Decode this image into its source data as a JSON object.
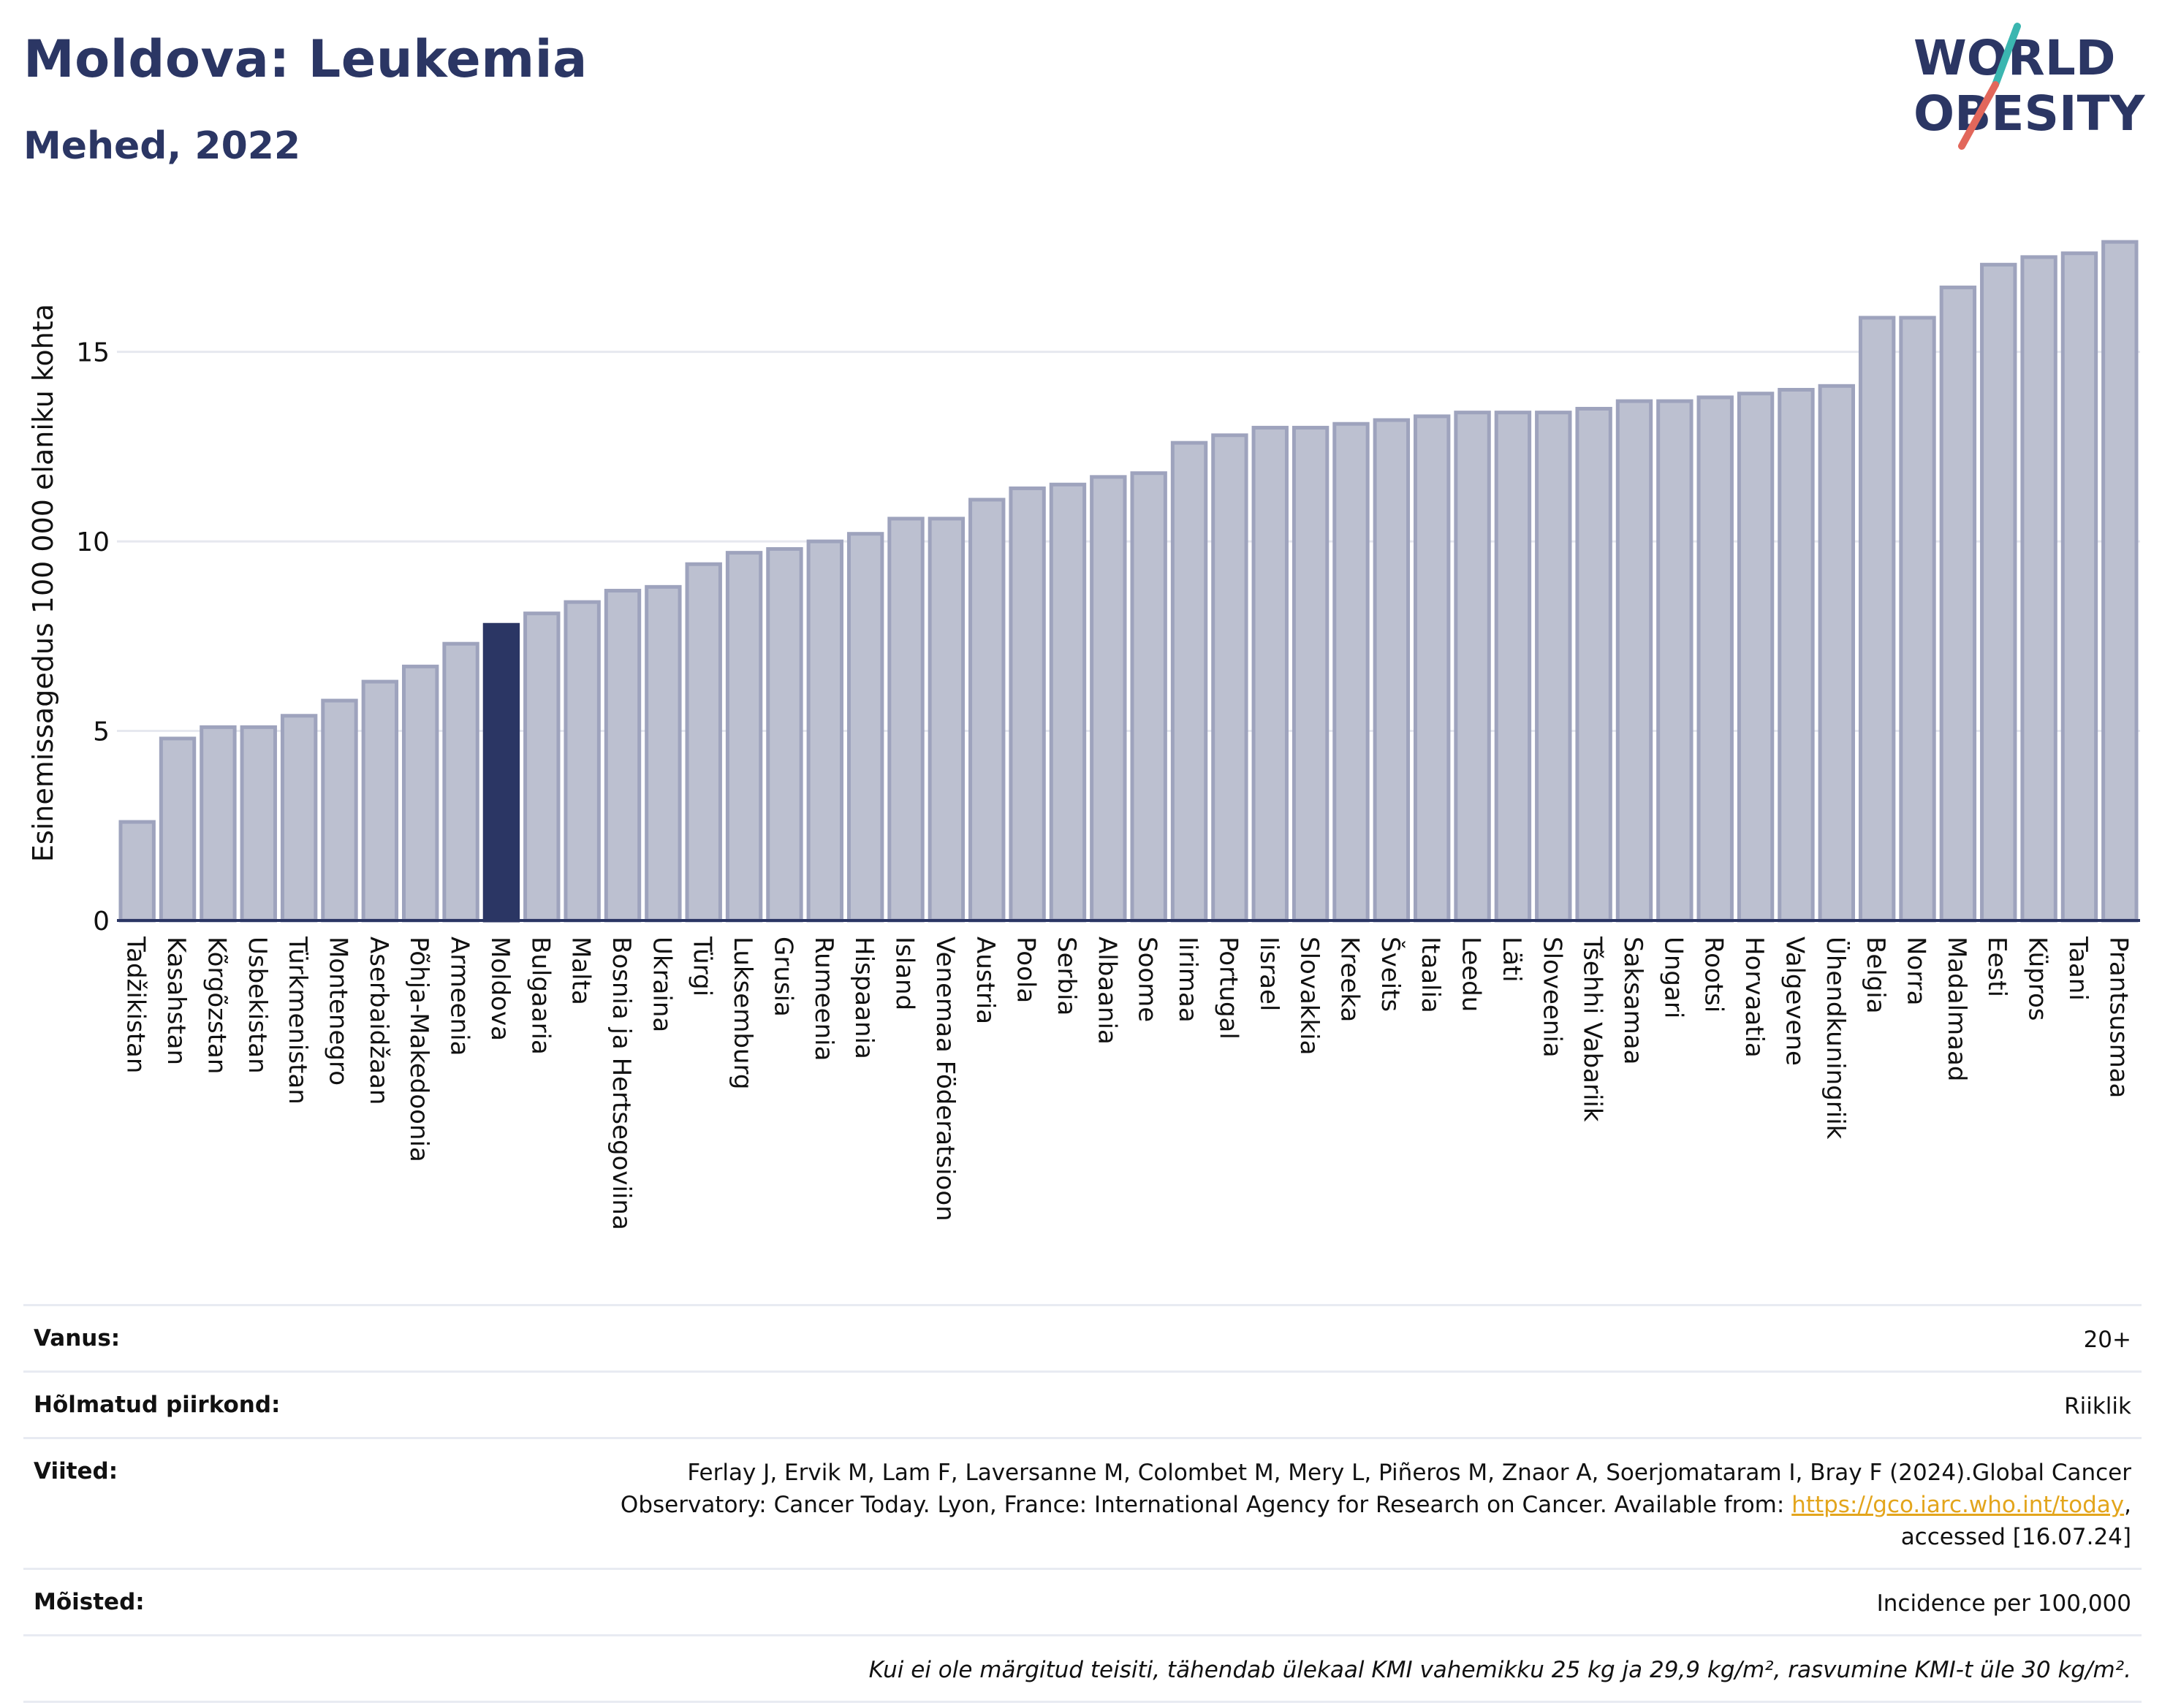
{
  "header": {
    "title": "Moldova: Leukemia",
    "subtitle": "Mehed, 2022"
  },
  "logo": {
    "line1": "WORLD",
    "line2": "OBESITY"
  },
  "chart_data": {
    "type": "bar",
    "ylabel": "Esinemissagedus 100 000 elaniku kohta",
    "ylim": [
      0,
      18.5
    ],
    "yticks": [
      0,
      5,
      10,
      15
    ],
    "grid": true,
    "highlight": "Moldova",
    "colors": {
      "bar": "#bcc0d0",
      "bar_border": "#9ea3bd",
      "highlight": "#2b3664"
    },
    "categories": [
      "Tadžikistan",
      "Kasahstan",
      "Kõrgõzstan",
      "Usbekistan",
      "Türkmenistan",
      "Montenegro",
      "Aserbaidžaan",
      "Põhja-Makedoonia",
      "Armeenia",
      "Moldova",
      "Bulgaaria",
      "Malta",
      "Bosnia ja Hertsegoviina",
      "Ukraina",
      "Türgi",
      "Luksemburg",
      "Grusia",
      "Rumeenia",
      "Hispaania",
      "Island",
      "Venemaa Föderatsioon",
      "Austria",
      "Poola",
      "Serbia",
      "Albaania",
      "Soome",
      "Iirimaa",
      "Portugal",
      "Iisrael",
      "Slovakkia",
      "Kreeka",
      "Šveits",
      "Itaalia",
      "Leedu",
      "Läti",
      "Sloveenia",
      "Tšehhi Vabariik",
      "Saksamaa",
      "Ungari",
      "Rootsi",
      "Horvaatia",
      "Valgevene",
      "Ühendkuningriik",
      "Belgia",
      "Norra",
      "Madalmaad",
      "Eesti",
      "Küpros",
      "Taani",
      "Prantsusmaa"
    ],
    "values": [
      2.6,
      4.8,
      5.1,
      5.1,
      5.4,
      5.8,
      6.3,
      6.7,
      7.3,
      7.8,
      8.1,
      8.4,
      8.7,
      8.8,
      9.4,
      9.7,
      9.8,
      10.0,
      10.2,
      10.6,
      10.6,
      11.1,
      11.4,
      11.5,
      11.7,
      11.8,
      12.6,
      12.8,
      13.0,
      13.0,
      13.1,
      13.2,
      13.3,
      13.4,
      13.4,
      13.4,
      13.5,
      13.7,
      13.7,
      13.8,
      13.9,
      14.0,
      14.1,
      15.9,
      15.9,
      16.7,
      17.3,
      17.5,
      17.6,
      17.9
    ]
  },
  "meta": {
    "age_label": "Vanus:",
    "age_value": "20+",
    "region_label": "Hõlmatud piirkond:",
    "region_value": "Riiklik",
    "refs_label": "Viited:",
    "refs_text_1": "Ferlay J, Ervik M, Lam F, Laversanne M, Colombet M, Mery L, Piñeros M, Znaor A, Soerjomataram I, Bray F (2024).Global Cancer",
    "refs_text_2": "Observatory: Cancer Today. Lyon, France: International Agency for Research on Cancer. Available from: ",
    "refs_link": "https://gco.iarc.who.int/today",
    "refs_text_3": ",",
    "refs_text_4": "accessed [16.07.24]",
    "definitions_label": "Mõisted:",
    "definitions_value": "Incidence per 100,000",
    "footnote": "Kui ei ole märgitud teisiti, tähendab ülekaal KMI vahemikku 25 kg ja 29,9 kg/m², rasvumine KMI-t üle 30 kg/m²."
  }
}
